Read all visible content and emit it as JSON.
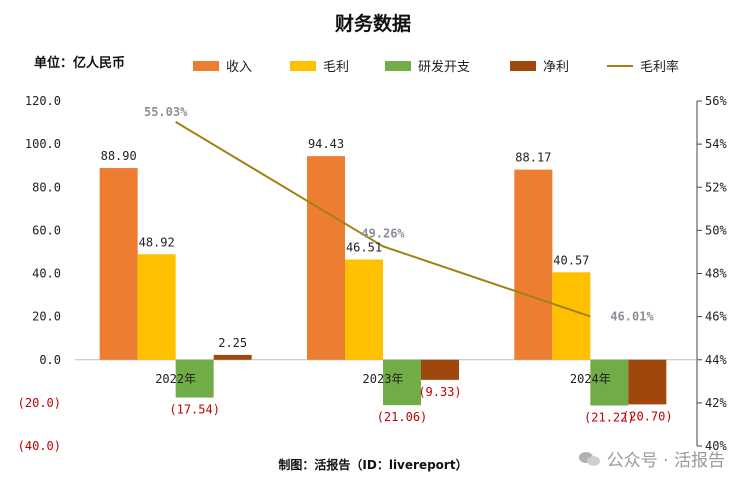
{
  "chart_data": {
    "type": "bar",
    "title": "财务数据",
    "unit_label": "单位：亿人民币",
    "categories": [
      "2022年",
      "2023年",
      "2024年"
    ],
    "series": [
      {
        "name": "收入",
        "values": [
          88.9,
          94.43,
          88.17
        ],
        "labels": [
          "88.90",
          "94.43",
          "88.17"
        ],
        "color": "#ed7d31"
      },
      {
        "name": "毛利",
        "values": [
          48.92,
          46.51,
          40.57
        ],
        "labels": [
          "48.92",
          "46.51",
          "40.57"
        ],
        "color": "#ffc000"
      },
      {
        "name": "研发开支",
        "values": [
          -17.54,
          -21.06,
          -21.22
        ],
        "labels": [
          "(17.54)",
          "(21.06)",
          "(21.22)"
        ],
        "color": "#70ad47"
      },
      {
        "name": "净利",
        "values": [
          2.25,
          -9.33,
          -20.7
        ],
        "labels": [
          "2.25",
          "(9.33)",
          "(20.70)"
        ],
        "color": "#9e480e"
      }
    ],
    "line_series": {
      "name": "毛利率",
      "values": [
        55.03,
        49.26,
        46.01
      ],
      "labels": [
        "55.03%",
        "49.26%",
        "46.01%"
      ],
      "color": "#a08214",
      "axis": "right"
    },
    "left_axis": {
      "ylim": [
        -40,
        120
      ],
      "ticks": [
        120,
        100,
        80,
        60,
        40,
        20,
        0,
        -20,
        -40
      ],
      "tick_labels": [
        "120.0",
        "100.0",
        "80.0",
        "60.0",
        "40.0",
        "20.0",
        "0.0",
        "(20.0)",
        "(40.0)"
      ]
    },
    "right_axis": {
      "ylim": [
        40,
        56
      ],
      "ticks": [
        56,
        54,
        52,
        50,
        48,
        46,
        44,
        42,
        40
      ],
      "tick_labels": [
        "56%",
        "54%",
        "52%",
        "50%",
        "48%",
        "46%",
        "44%",
        "42%",
        "40%"
      ]
    },
    "legend_position": "top",
    "grid": false
  },
  "footer": "制图：活报告（ID：livereport）",
  "watermark": "公众号 · 活报告"
}
